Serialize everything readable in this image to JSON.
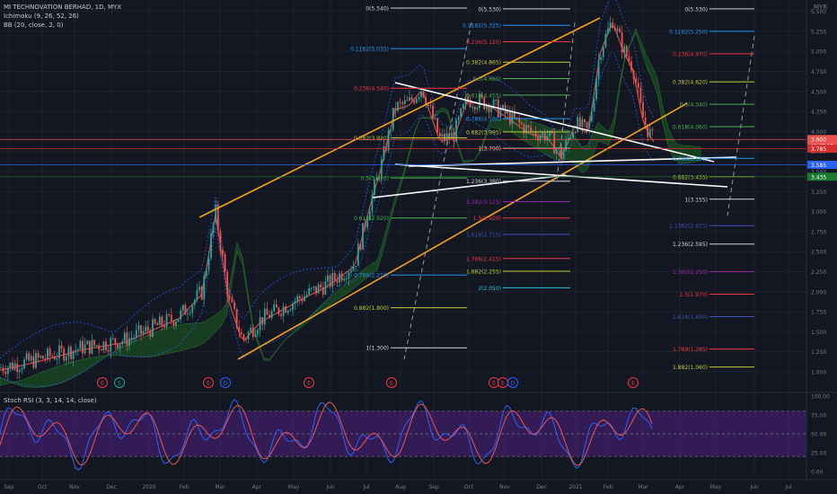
{
  "header": {
    "title": "MI TECHNOVATION BERHAD, 1D, MYX",
    "indicators": [
      "Ichimoku (9, 26, 52, 26)",
      "BB (20, close, 2, 0)"
    ]
  },
  "stoch_label": "Stoch RSI (3, 3, 14, 14, close)",
  "currency": "MYR",
  "colors": {
    "background": "#131722",
    "grid": "#1e222d",
    "up": "#26a69a",
    "down": "#ef5350",
    "channel": "#f7a21b",
    "triangle": "#ffffff",
    "stoch_k": "#2962ff",
    "stoch_d": "#ef5350",
    "stoch_band": "#4a1f7a",
    "kumo_bull": "#1b5e20",
    "kumo_bear": "#5d2a2a"
  },
  "price_scale": [
    "5.500",
    "5.250",
    "5.000",
    "4.750",
    "4.500",
    "4.250",
    "4.000",
    "3.750",
    "3.500",
    "3.250",
    "3.000",
    "2.750",
    "2.500",
    "2.250",
    "2.000",
    "1.750",
    "1.500",
    "1.250",
    "1.000"
  ],
  "price_badges": [
    {
      "text": "3.900",
      "sub": "05:57:17",
      "color": "#ef5350",
      "price": 3.9
    },
    {
      "text": "3.785",
      "color": "#d32f2f",
      "price": 3.785
    },
    {
      "text": "3.585",
      "color": "#2962ff",
      "price": 3.585
    },
    {
      "text": "3.435",
      "color": "#1b7a2f",
      "price": 3.435
    }
  ],
  "stoch_scale": [
    "100.00",
    "75.00",
    "50.00",
    "25.00",
    "0.00"
  ],
  "time_axis": [
    "Sep",
    "Oct",
    "Nov",
    "Dec",
    "2020",
    "Feb",
    "Mar",
    "Apr",
    "May",
    "Jun",
    "Jul",
    "Aug",
    "Sep",
    "Oct",
    "Nov",
    "Dec",
    "2021",
    "Feb",
    "Mar",
    "Apr",
    "May",
    "Jun",
    "Jul"
  ],
  "fib_sets": [
    {
      "levels": [
        {
          "label": "0(5.540)",
          "price": 5.54,
          "color": "#d1d4dc"
        },
        {
          "label": "0.1182(5.035)",
          "price": 5.035,
          "color": "#2196f3"
        },
        {
          "label": "0.236(4.540)",
          "price": 4.54,
          "color": "#f23645"
        },
        {
          "label": "0.382(3.920)",
          "price": 3.92,
          "color": "#c0ca33"
        },
        {
          "label": "0.5(3.420)",
          "price": 3.42,
          "color": "#4caf50"
        },
        {
          "label": "0.618(2.920)",
          "price": 2.92,
          "color": "#4caf50"
        },
        {
          "label": "0.786(2.210)",
          "price": 2.21,
          "color": "#2196f3"
        },
        {
          "label": "0.882(1.800)",
          "price": 1.8,
          "color": "#c0ca33"
        },
        {
          "label": "1(1.300)",
          "price": 1.3,
          "color": "#d1d4dc"
        }
      ]
    },
    {
      "levels": [
        {
          "label": "0(5.530)",
          "price": 5.53,
          "color": "#d1d4dc"
        },
        {
          "label": "0.1182(5.325)",
          "price": 5.325,
          "color": "#2196f3"
        },
        {
          "label": "0.236(5.120)",
          "price": 5.12,
          "color": "#f23645"
        },
        {
          "label": "0.382(4.865)",
          "price": 4.865,
          "color": "#c0ca33"
        },
        {
          "label": "0.5(4.660)",
          "price": 4.66,
          "color": "#4caf50"
        },
        {
          "label": "0.618(4.455)",
          "price": 4.455,
          "color": "#4caf50"
        },
        {
          "label": "0.786(4.160)",
          "price": 4.16,
          "color": "#2196f3"
        },
        {
          "label": "0.882(3.995)",
          "price": 3.995,
          "color": "#c0ca33"
        },
        {
          "label": "1(3.790)",
          "price": 3.79,
          "color": "#d1d4dc"
        },
        {
          "label": "1.236(3.380)",
          "price": 3.38,
          "color": "#d1d4dc"
        },
        {
          "label": "1.382(3.125)",
          "price": 3.125,
          "color": "#9c27b0"
        },
        {
          "label": "1.5(2.920)",
          "price": 2.92,
          "color": "#f23645"
        },
        {
          "label": "1.618(2.715)",
          "price": 2.715,
          "color": "#3f51b5"
        },
        {
          "label": "1.786(2.415)",
          "price": 2.415,
          "color": "#f23645"
        },
        {
          "label": "1.882(2.255)",
          "price": 2.255,
          "color": "#c0ca33"
        },
        {
          "label": "2(2.050)",
          "price": 2.05,
          "color": "#26c6da"
        }
      ]
    },
    {
      "levels": [
        {
          "label": "0(5.530)",
          "price": 5.53,
          "color": "#d1d4dc"
        },
        {
          "label": "0.1182(5.250)",
          "price": 5.25,
          "color": "#2196f3"
        },
        {
          "label": "0.236(4.970)",
          "price": 4.97,
          "color": "#f23645"
        },
        {
          "label": "0.382(4.620)",
          "price": 4.62,
          "color": "#c0ca33"
        },
        {
          "label": "0.5(4.340)",
          "price": 4.34,
          "color": "#4caf50"
        },
        {
          "label": "0.618(4.060)",
          "price": 4.06,
          "color": "#4caf50"
        },
        {
          "label": "0.786(3.665)",
          "price": 3.665,
          "color": "#2196f3"
        },
        {
          "label": "0.882(3.435)",
          "price": 3.435,
          "color": "#c0ca33"
        },
        {
          "label": "1(3.155)",
          "price": 3.155,
          "color": "#d1d4dc"
        },
        {
          "label": "1.1382(2.825)",
          "price": 2.825,
          "color": "#3f51b5"
        },
        {
          "label": "1.236(2.595)",
          "price": 2.595,
          "color": "#d1d4dc"
        },
        {
          "label": "1.382(2.250)",
          "price": 2.25,
          "color": "#9c27b0"
        },
        {
          "label": "1.5(1.970)",
          "price": 1.97,
          "color": "#f23645"
        },
        {
          "label": "1.618(1.690)",
          "price": 1.69,
          "color": "#3f51b5"
        },
        {
          "label": "1.789(1.285)",
          "price": 1.285,
          "color": "#f23645"
        },
        {
          "label": "1.882(1.060)",
          "price": 1.06,
          "color": "#c0ca33"
        }
      ]
    }
  ],
  "event_markers": [
    {
      "letter": "E",
      "color": "#f23645",
      "date": "Oct"
    },
    {
      "letter": "S",
      "color": "#26a69a",
      "date": "Nov"
    },
    {
      "letter": "E",
      "color": "#f23645",
      "date": "Feb"
    },
    {
      "letter": "D",
      "color": "#2962ff",
      "date": "Mar"
    },
    {
      "letter": "E",
      "color": "#f23645",
      "date": "May"
    },
    {
      "letter": "E",
      "color": "#f23645",
      "date": "Aug"
    },
    {
      "letter": "E",
      "color": "#f23645",
      "date": "Nov"
    },
    {
      "letter": "E",
      "color": "#f23645",
      "date": "Nov"
    },
    {
      "letter": "D",
      "color": "#2962ff",
      "date": "Dec"
    },
    {
      "letter": "E",
      "color": "#f23645",
      "date": "Feb"
    }
  ],
  "chart_data": {
    "type": "line",
    "symbol": "MI TECHNOVATION BERHAD",
    "interval": "1D",
    "exchange": "MYX",
    "price_range": [
      0.95,
      5.55
    ],
    "x": [
      "Sep",
      "Oct",
      "Nov",
      "Dec",
      "2020",
      "Feb",
      "Mar",
      "Apr",
      "May",
      "Jun",
      "Jul",
      "Aug",
      "Sep",
      "Oct",
      "Nov",
      "Dec",
      "2021",
      "Feb",
      "Mar"
    ],
    "series": [
      {
        "values": [
          1.0,
          1.15,
          1.3,
          1.45,
          1.65,
          2.0,
          1.4,
          1.8,
          2.0,
          2.1,
          2.4,
          4.3,
          4.2,
          4.3,
          3.9,
          3.9,
          4.3,
          5.3,
          3.9
        ]
      }
    ],
    "last_price": 3.9,
    "trendlines": [
      "ascending channel",
      "symmetrical triangle"
    ],
    "stoch_rsi": {
      "k_period": 3,
      "d_period": 3,
      "rsi_length": 14,
      "stoch_length": 14,
      "source": "close",
      "range": [
        0,
        100
      ],
      "bands": [
        20,
        80
      ]
    },
    "grid": true
  }
}
